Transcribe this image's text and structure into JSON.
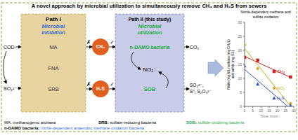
{
  "chart_data": {
    "type": "scatter",
    "title": "A novel approach by microbial utilization to simultaneously remove CH₄ and H₂S from sewers",
    "subtitle": [
      "Nitrite-dependent methane and",
      "sulfide oxidation"
    ],
    "xlabel": "Time (min)",
    "ylabel": "Nitrite (mg N/L methane (mg CH₄/L)\nand sulfide (mg S/L)",
    "x": [
      0,
      8,
      18,
      28
    ],
    "series": [
      {
        "name": "CH₄",
        "color": "#cc2222",
        "marker": "square",
        "values": [
          17.5,
          16.5,
          12.5,
          10.5
        ],
        "trend_x": [
          0,
          28
        ],
        "trend_values": [
          17.8612,
          10.3713
        ]
      },
      {
        "name": "NO₂⁻",
        "color": "#ccaa22",
        "marker": "diamond",
        "values": [
          22.0,
          13.5,
          6.5,
          1.0
        ],
        "trend_x": [
          0,
          28
        ],
        "trend_values": [
          20.7302,
          0.0305
        ]
      },
      {
        "name": "H₂S",
        "color": "#3355bb",
        "marker": "triangle",
        "values": [
          14.5,
          8.0,
          3.0,
          0.3
        ],
        "trend_x": [
          0,
          28
        ],
        "trend_values": [
          13.2122,
          -0.8131
        ]
      }
    ],
    "xlim": [
      0,
      30
    ],
    "ylim": [
      0,
      30
    ],
    "xticks": [
      0,
      5,
      10,
      15,
      20,
      25,
      30
    ],
    "yticks": [
      0,
      5,
      10,
      15,
      20,
      25,
      30
    ],
    "grid": false,
    "annotations": {
      "border_color": "#88aa44",
      "inputs": [
        "COD",
        "SO₄²⁻"
      ],
      "path1": {
        "title": "Path I",
        "subtitle": [
          "Microbial",
          "inhibition"
        ],
        "subtitle_color": "#3366cc",
        "fill": "#e8d4a0",
        "border": "#bbaa55",
        "items": [
          "MA",
          "FNA",
          "SRB"
        ],
        "item_color": "#333333"
      },
      "gases": [
        "CH₄",
        "H₂S"
      ],
      "gas_color": "#e06020",
      "blocked": "✗",
      "passed": "✓",
      "path2": {
        "title": "Path II (this study)",
        "subtitle": [
          "Microbial",
          "utilization"
        ],
        "subtitle_color": "#22aa44",
        "fill": "#c8cce8",
        "border": "#8888bb",
        "items": [
          "n-DAMO bacteria",
          "SOB"
        ],
        "center": "NO₂⁻"
      },
      "products": [
        "CO₂",
        "SO₄²⁻,",
        "S⁰, S₂O₃²⁻"
      ],
      "arrow_fill": "#aabbdd",
      "arrow_edge": "#7799cc",
      "notes": [
        {
          "text": "MA: methanogenic archaea"
        },
        {
          "term": "n-DAMO bacteria: ",
          "text": "nitrite-dependent anaerobic methane oxidation bacteria",
          "color": "#3366cc"
        },
        {
          "term": "SRB: ",
          "text": "sulfate-reducing bacteria"
        },
        {
          "term": "SOB: ",
          "text": "sulfide-oxidizing bacteria",
          "color": "#22aa44",
          "term_color": "#22aa44"
        }
      ]
    }
  }
}
